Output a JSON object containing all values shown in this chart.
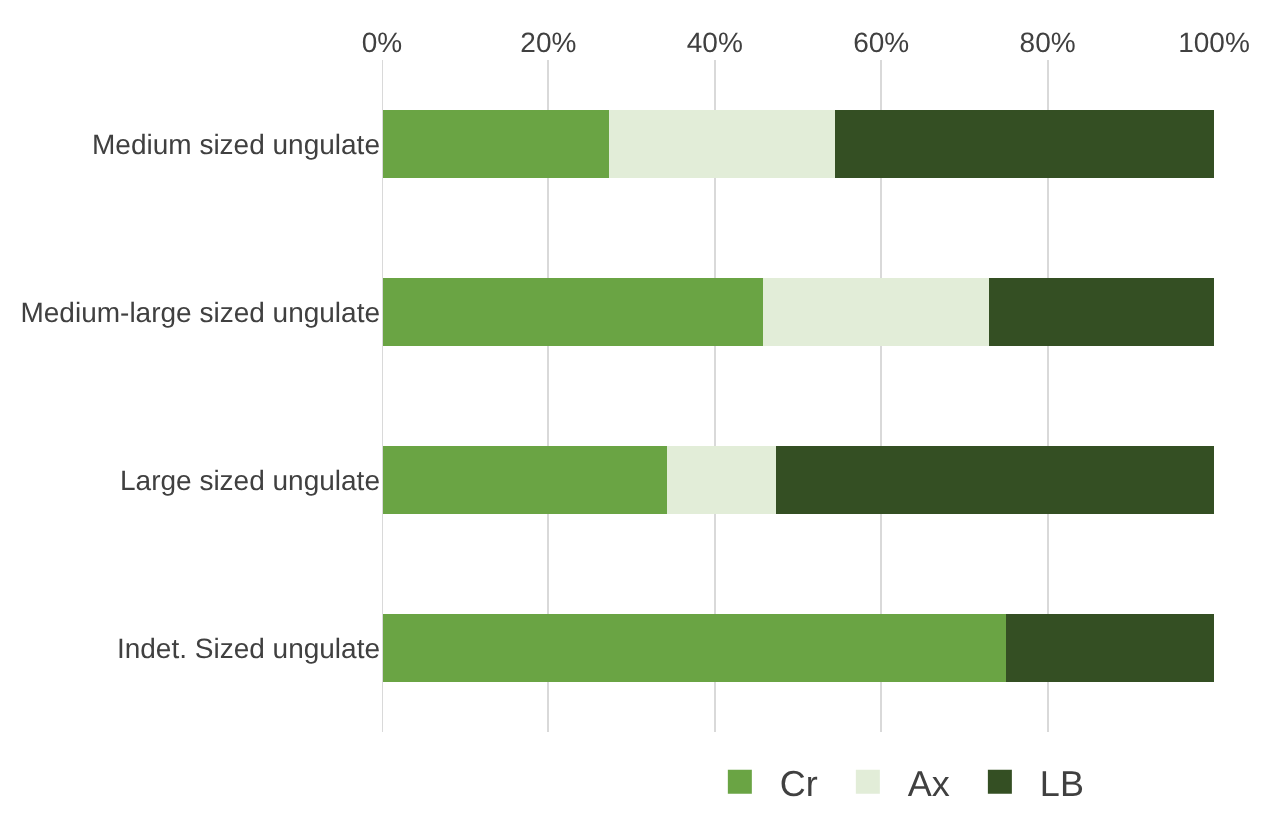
{
  "chart_data": {
    "type": "bar",
    "orientation": "horizontal",
    "stacked": true,
    "categories": [
      "Medium sized ungulate",
      "Medium-large sized ungulate",
      "Large sized ungulate",
      "Indet. Sized ungulate"
    ],
    "series": [
      {
        "name": "Cr",
        "color": "#6aa444",
        "values": [
          27.3,
          45.8,
          34.2,
          75
        ]
      },
      {
        "name": "Ax",
        "color": "#e2edd8",
        "values": [
          27.1,
          27.1,
          13.1,
          0
        ]
      },
      {
        "name": "LB",
        "color": "#344f23",
        "values": [
          45.6,
          27.1,
          52.7,
          25
        ]
      }
    ],
    "xlim": [
      0,
      100
    ],
    "xticks": [
      {
        "value": 0,
        "label": "0%"
      },
      {
        "value": 20,
        "label": "20%"
      },
      {
        "value": 40,
        "label": "40%"
      },
      {
        "value": 60,
        "label": "60%"
      },
      {
        "value": 80,
        "label": "80%"
      },
      {
        "value": 100,
        "label": "100%"
      }
    ],
    "grid": "x",
    "legend": "bottom"
  }
}
